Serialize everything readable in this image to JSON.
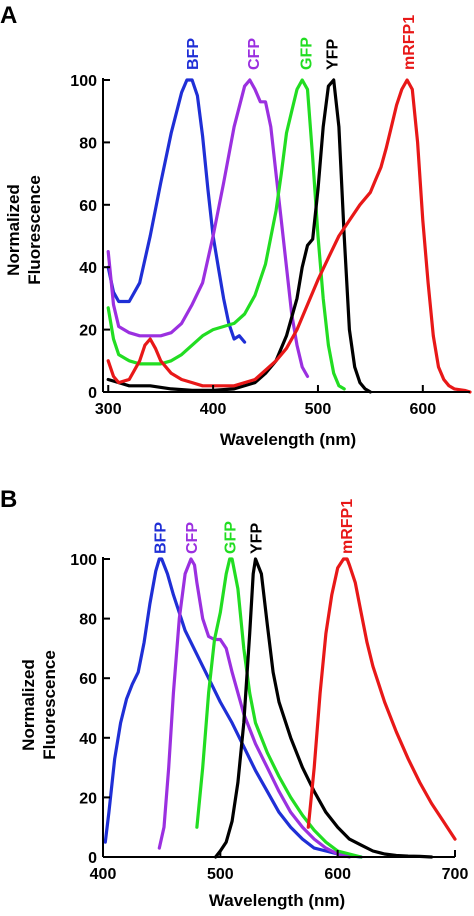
{
  "chart_data": [
    {
      "type": "line",
      "panel": "A",
      "xlabel": "Wavelength (nm)",
      "ylabel": [
        "Normalized",
        "Fluorescence"
      ],
      "xlim": [
        295,
        645
      ],
      "ylim": [
        0,
        100
      ],
      "xticks": [
        300,
        400,
        500,
        600
      ],
      "yticks": [
        0,
        20,
        40,
        60,
        80,
        100
      ],
      "series": [
        {
          "name": "BFP",
          "color": "#1f2fd6",
          "x": [
            300,
            305,
            310,
            320,
            330,
            340,
            350,
            360,
            370,
            375,
            380,
            385,
            390,
            395,
            400,
            405,
            410,
            415,
            420,
            425,
            430
          ],
          "y": [
            40,
            32,
            29,
            29,
            35,
            50,
            67,
            83,
            96,
            100,
            100,
            95,
            82,
            65,
            50,
            40,
            30,
            22,
            17,
            18,
            16
          ]
        },
        {
          "name": "CFP",
          "color": "#9b30e0",
          "x": [
            300,
            305,
            310,
            320,
            330,
            340,
            350,
            360,
            370,
            380,
            390,
            400,
            410,
            420,
            430,
            435,
            440,
            445,
            450,
            455,
            460,
            465,
            470,
            475,
            480,
            485,
            490
          ],
          "y": [
            45,
            28,
            21,
            19,
            18,
            18,
            18,
            19,
            22,
            28,
            35,
            50,
            67,
            85,
            98,
            100,
            97,
            93,
            93,
            85,
            70,
            55,
            40,
            25,
            15,
            8,
            5
          ]
        },
        {
          "name": "GFP",
          "color": "#22dd22",
          "x": [
            300,
            305,
            310,
            320,
            330,
            340,
            350,
            360,
            370,
            380,
            390,
            400,
            410,
            420,
            430,
            440,
            450,
            460,
            465,
            470,
            475,
            480,
            485,
            490,
            495,
            500,
            505,
            510,
            515,
            520,
            525
          ],
          "y": [
            27,
            17,
            12,
            10,
            9,
            9,
            9,
            10,
            12,
            15,
            18,
            20,
            21,
            22,
            25,
            31,
            41,
            58,
            70,
            83,
            90,
            97,
            100,
            97,
            75,
            50,
            30,
            15,
            6,
            2,
            1
          ]
        },
        {
          "name": "YFP",
          "color": "#000000",
          "x": [
            300,
            310,
            320,
            340,
            360,
            380,
            400,
            420,
            440,
            450,
            460,
            470,
            480,
            485,
            490,
            495,
            500,
            505,
            510,
            515,
            520,
            525,
            530,
            535,
            540,
            545,
            550
          ],
          "y": [
            4,
            3,
            2,
            2,
            1,
            0.5,
            0.5,
            1,
            3,
            6,
            10,
            18,
            30,
            40,
            47,
            49,
            65,
            85,
            98,
            100,
            85,
            50,
            20,
            8,
            3,
            1,
            0
          ]
        },
        {
          "name": "mRFP1",
          "color": "#e81818",
          "x": [
            300,
            305,
            310,
            320,
            330,
            335,
            340,
            345,
            350,
            360,
            370,
            380,
            390,
            400,
            410,
            420,
            430,
            440,
            450,
            460,
            470,
            480,
            490,
            500,
            510,
            520,
            530,
            540,
            550,
            555,
            560,
            565,
            570,
            575,
            580,
            585,
            590,
            595,
            600,
            605,
            610,
            615,
            620,
            625,
            630,
            640,
            645
          ],
          "y": [
            10,
            5,
            3,
            4,
            10,
            15,
            17,
            14,
            10,
            6,
            4,
            3,
            2,
            2,
            2,
            2,
            3,
            4,
            7,
            10,
            14,
            20,
            28,
            36,
            43,
            50,
            55,
            60,
            64,
            68,
            72,
            78,
            85,
            92,
            97,
            100,
            97,
            80,
            55,
            35,
            18,
            8,
            4,
            2,
            1,
            0.5,
            0
          ]
        }
      ]
    },
    {
      "type": "line",
      "panel": "B",
      "xlabel": "Wavelength (nm)",
      "ylabel": [
        "Normalized",
        "Fluorescence"
      ],
      "xlim": [
        400,
        700
      ],
      "ylim": [
        0,
        100
      ],
      "xticks": [
        400,
        500,
        600,
        700
      ],
      "yticks": [
        0,
        20,
        40,
        60,
        80,
        100
      ],
      "series": [
        {
          "name": "BFP",
          "color": "#1f2fd6",
          "x": [
            402,
            405,
            410,
            415,
            420,
            425,
            430,
            435,
            440,
            445,
            448,
            450,
            455,
            460,
            465,
            470,
            480,
            490,
            500,
            510,
            520,
            530,
            540,
            550,
            560,
            570,
            580,
            590,
            600,
            610,
            620
          ],
          "y": [
            5,
            15,
            33,
            45,
            53,
            58,
            62,
            72,
            85,
            96,
            100,
            100,
            95,
            88,
            82,
            76,
            68,
            60,
            52,
            45,
            37,
            29,
            22,
            15,
            10,
            6,
            3,
            2,
            1,
            0.5,
            0
          ]
        },
        {
          "name": "CFP",
          "color": "#9b30e0",
          "x": [
            448,
            452,
            456,
            460,
            465,
            470,
            475,
            478,
            480,
            485,
            490,
            495,
            500,
            505,
            510,
            520,
            530,
            540,
            550,
            560,
            570,
            580,
            590,
            600,
            610
          ],
          "y": [
            3,
            10,
            30,
            55,
            80,
            95,
            100,
            98,
            92,
            80,
            74,
            73,
            73,
            70,
            62,
            48,
            38,
            30,
            22,
            15,
            10,
            6,
            3,
            1,
            0
          ]
        },
        {
          "name": "GFP",
          "color": "#22dd22",
          "x": [
            480,
            485,
            490,
            495,
            500,
            505,
            508,
            510,
            515,
            520,
            525,
            530,
            540,
            550,
            560,
            570,
            580,
            590,
            600,
            610,
            620
          ],
          "y": [
            10,
            30,
            55,
            73,
            82,
            95,
            100,
            100,
            90,
            70,
            55,
            45,
            35,
            27,
            20,
            14,
            9,
            5,
            2,
            1,
            0
          ]
        },
        {
          "name": "YFP",
          "color": "#000000",
          "x": [
            496,
            500,
            505,
            510,
            515,
            520,
            525,
            528,
            530,
            535,
            540,
            545,
            550,
            560,
            570,
            580,
            590,
            600,
            610,
            620,
            630,
            640,
            650,
            660,
            670,
            680
          ],
          "y": [
            0,
            2,
            5,
            12,
            25,
            45,
            75,
            95,
            100,
            95,
            78,
            62,
            52,
            40,
            30,
            22,
            15,
            10,
            6,
            4,
            2,
            1,
            0.5,
            0.3,
            0.2,
            0
          ]
        },
        {
          "name": "mRFP1",
          "color": "#e81818",
          "x": [
            575,
            580,
            585,
            590,
            595,
            600,
            605,
            608,
            610,
            615,
            620,
            625,
            630,
            640,
            650,
            660,
            670,
            680,
            690,
            700
          ],
          "y": [
            10,
            30,
            55,
            75,
            88,
            97,
            100,
            100,
            98,
            92,
            82,
            72,
            64,
            52,
            42,
            33,
            25,
            18,
            12,
            6
          ]
        }
      ]
    }
  ]
}
